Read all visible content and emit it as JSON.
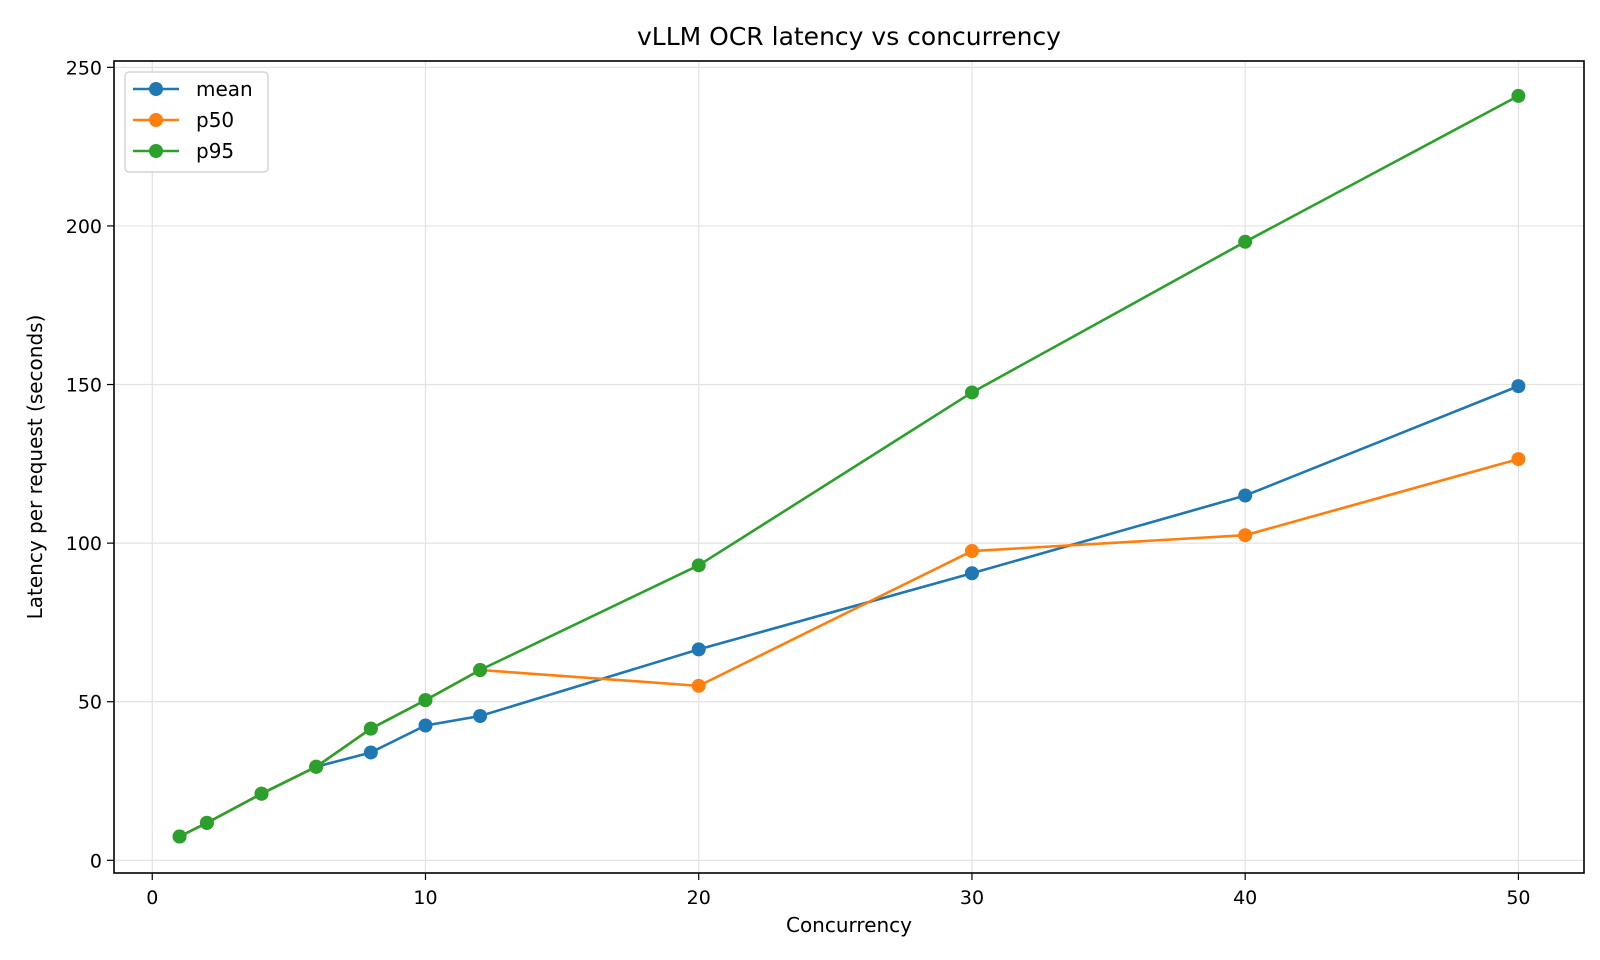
{
  "chart_data": {
    "type": "line",
    "title": "vLLM OCR latency vs concurrency",
    "xlabel": "Concurrency",
    "ylabel": "Latency per request (seconds)",
    "xlim": [
      -1.4,
      52.4
    ],
    "ylim": [
      -4,
      252
    ],
    "xticks": [
      0,
      10,
      20,
      30,
      40,
      50
    ],
    "yticks": [
      0,
      50,
      100,
      150,
      200,
      250
    ],
    "grid": true,
    "legend_position": "top-left",
    "x": [
      1,
      2,
      4,
      6,
      8,
      10,
      12,
      20,
      30,
      40,
      50
    ],
    "series": [
      {
        "name": "mean",
        "color": "#1f77b4",
        "values": [
          7.5,
          11.8,
          21,
          29.5,
          34,
          42.5,
          45.5,
          66.5,
          90.5,
          115,
          149.5
        ]
      },
      {
        "name": "p50",
        "color": "#ff7f0e",
        "values": [
          7.5,
          11.8,
          21,
          29.5,
          41.5,
          50.5,
          60,
          55,
          97.5,
          102.5,
          126.5
        ]
      },
      {
        "name": "p95",
        "color": "#2ca02c",
        "values": [
          7.5,
          11.8,
          21,
          29.5,
          41.5,
          50.5,
          60,
          93,
          147.5,
          195,
          241
        ]
      }
    ]
  }
}
